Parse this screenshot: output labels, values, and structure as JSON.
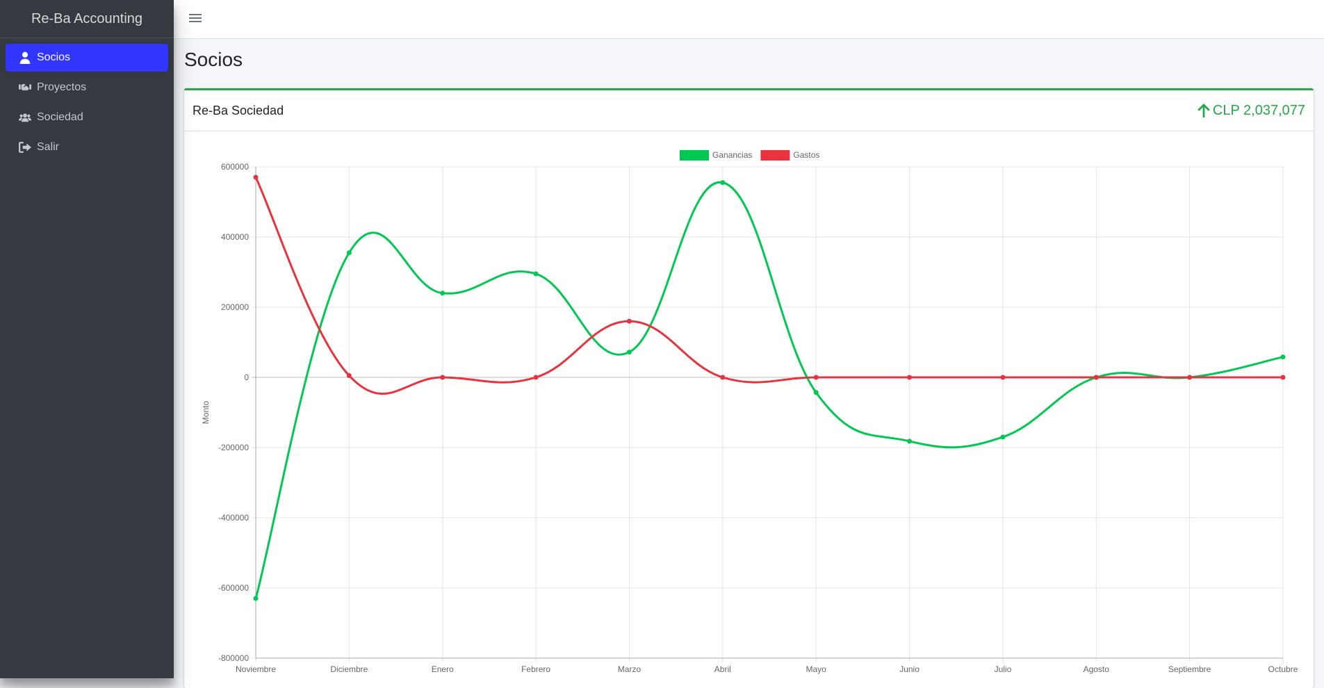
{
  "brand": {
    "name": "Re-Ba Accounting"
  },
  "sidebar": {
    "items": [
      {
        "label": "Socios",
        "icon": "user-icon",
        "active": true
      },
      {
        "label": "Proyectos",
        "icon": "handshake-icon",
        "active": false
      },
      {
        "label": "Sociedad",
        "icon": "users-icon",
        "active": false
      },
      {
        "label": "Salir",
        "icon": "sign-out-icon",
        "active": false
      }
    ]
  },
  "header": {
    "menu_icon": "hamburger-icon"
  },
  "page": {
    "title": "Socios"
  },
  "card": {
    "title": "Re-Ba Sociedad",
    "total": "CLP 2,037,077",
    "total_icon": "arrow-up-icon",
    "total_color": "#28a745"
  },
  "colors": {
    "accent": "#3235ff",
    "sidebar": "#343a40",
    "ganancias": "#00c853",
    "gastos": "#e8333f"
  },
  "chart_data": {
    "type": "line",
    "categories": [
      "Noviembre",
      "Diciembre",
      "Enero",
      "Febrero",
      "Marzo",
      "Abril",
      "Mayo",
      "Junio",
      "Julio",
      "Agosto",
      "Septiembre",
      "Octubre"
    ],
    "series": [
      {
        "name": "Ganancias",
        "color": "#00c853",
        "values": [
          -630000,
          355000,
          240000,
          295000,
          72000,
          555000,
          -43000,
          -182000,
          -170000,
          0,
          0,
          58000
        ]
      },
      {
        "name": "Gastos",
        "color": "#e8333f",
        "values": [
          570000,
          5000,
          0,
          0,
          160000,
          0,
          0,
          0,
          0,
          0,
          0,
          0
        ]
      }
    ],
    "ylabel": "Monto",
    "ylim": [
      -800000,
      600000
    ],
    "yticks": [
      600000,
      400000,
      200000,
      0,
      -200000,
      -400000,
      -600000,
      -800000
    ],
    "ytick_labels": [
      "600000",
      "400000",
      "200000",
      "0",
      "-200000",
      "-400000",
      "-600000",
      "-800000"
    ],
    "legend_position": "top",
    "grid": true,
    "smooth": true
  }
}
